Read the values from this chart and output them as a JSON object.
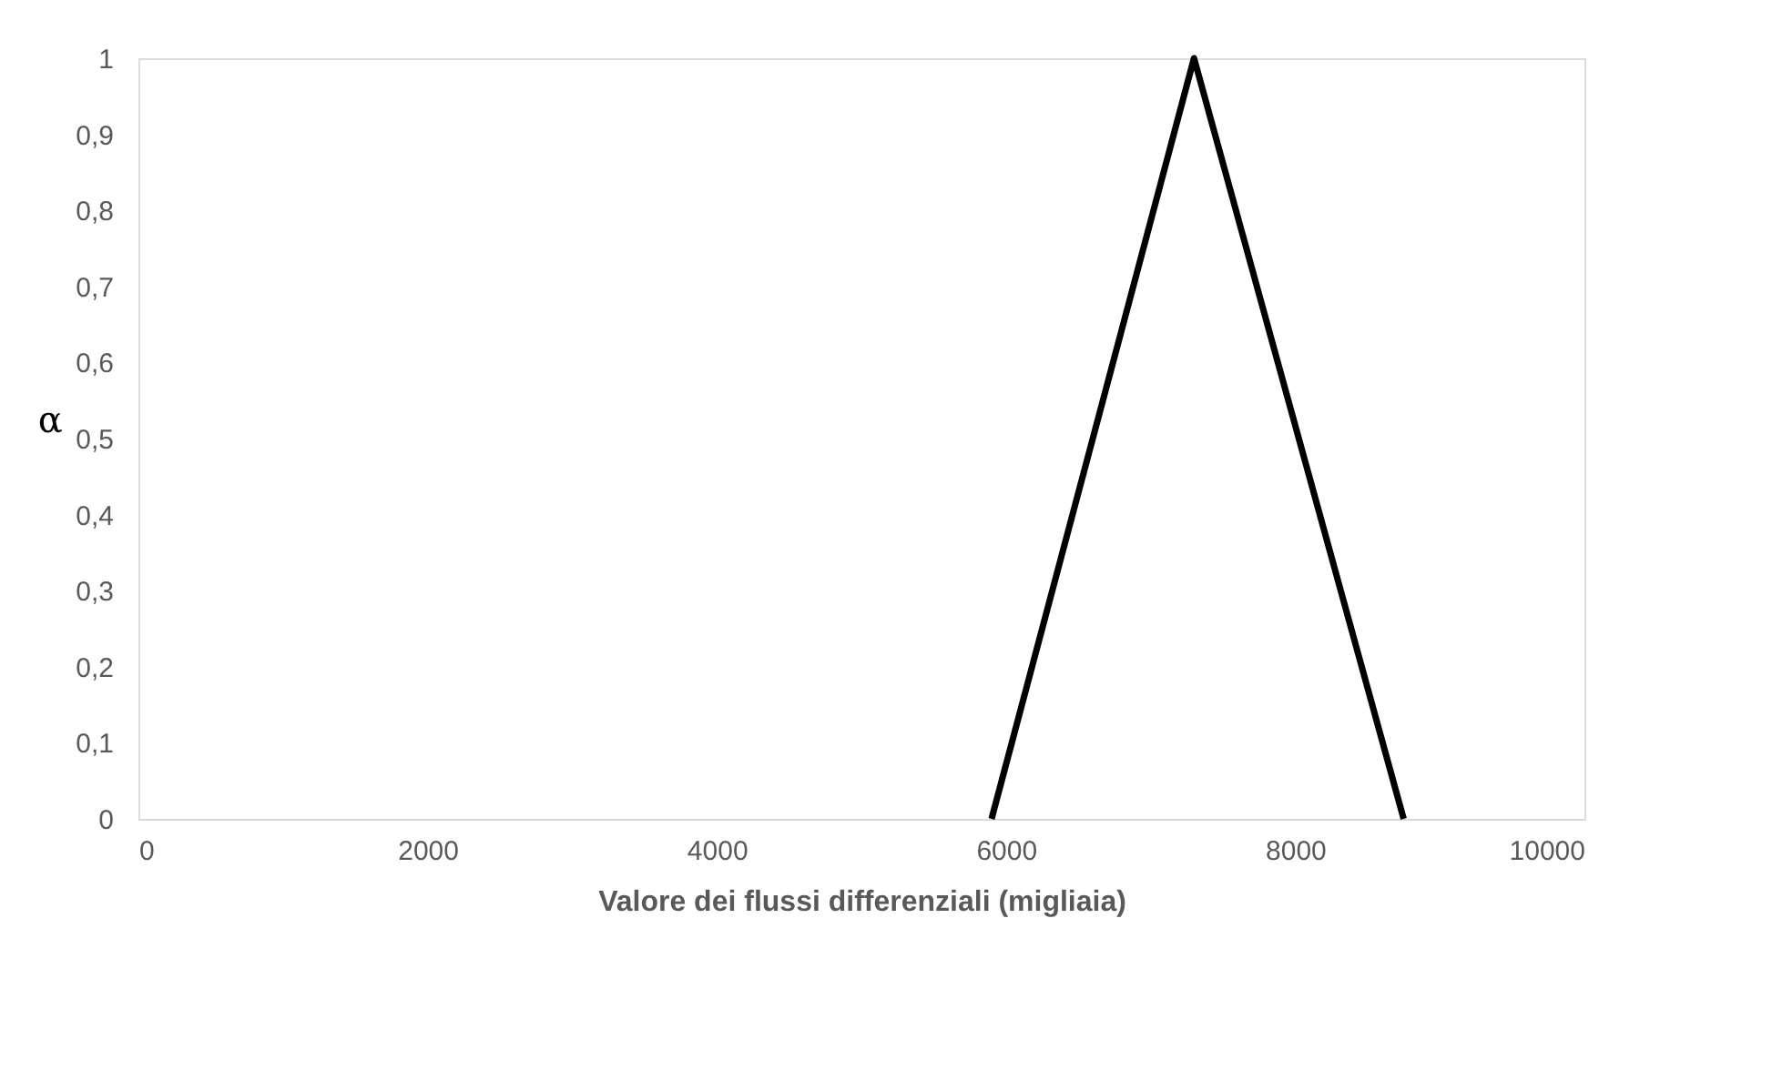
{
  "chart_data": {
    "type": "line",
    "xlabel": "Valore dei flussi differenziali (migliaia)",
    "ylabel": "α",
    "x": [
      5900,
      7300,
      8750
    ],
    "series": [
      {
        "color": "#000000",
        "values": [
          0,
          1,
          0
        ]
      }
    ],
    "xlim": [
      0,
      10000
    ],
    "xticks": [
      0,
      2000,
      4000,
      6000,
      8000,
      10000
    ],
    "ylim": [
      0,
      1
    ],
    "yticks": [
      0,
      {
        "value": 0.1,
        "label": "0,1"
      },
      {
        "value": 0.2,
        "label": "0,2"
      },
      {
        "value": 0.3,
        "label": "0,3"
      },
      {
        "value": 0.4,
        "label": "0,4"
      },
      {
        "value": 0.5,
        "label": "0,5"
      },
      {
        "value": 0.6,
        "label": "0,6"
      },
      {
        "value": 0.7,
        "label": "0,7"
      },
      {
        "value": 0.8,
        "label": "0,8"
      },
      {
        "value": 0.9,
        "label": "0,9"
      },
      1
    ],
    "grid": false,
    "marker": "none",
    "line_style": "solid"
  }
}
